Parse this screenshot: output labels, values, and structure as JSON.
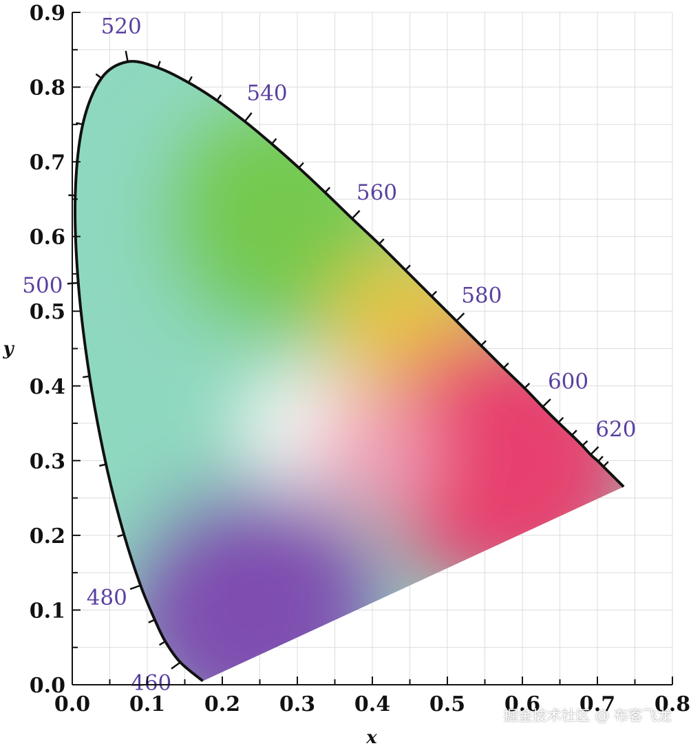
{
  "chart_data": {
    "type": "scatter",
    "title": "",
    "xlabel": "x",
    "ylabel": "y",
    "xlim": [
      0.0,
      0.8
    ],
    "ylim": [
      0.0,
      0.9
    ],
    "x_ticks": [
      "0.0",
      "0.1",
      "0.2",
      "0.3",
      "0.4",
      "0.5",
      "0.6",
      "0.7",
      "0.8"
    ],
    "y_ticks": [
      "0.0",
      "0.1",
      "0.2",
      "0.3",
      "0.4",
      "0.5",
      "0.6",
      "0.7",
      "0.8",
      "0.9"
    ],
    "grid": true,
    "spectral_locus": [
      {
        "nm": 460,
        "x": 0.144,
        "y": 0.03
      },
      {
        "nm": 470,
        "x": 0.124,
        "y": 0.058
      },
      {
        "nm": 475,
        "x": 0.11,
        "y": 0.087
      },
      {
        "nm": 480,
        "x": 0.091,
        "y": 0.133
      },
      {
        "nm": 485,
        "x": 0.069,
        "y": 0.201
      },
      {
        "nm": 490,
        "x": 0.045,
        "y": 0.295
      },
      {
        "nm": 495,
        "x": 0.023,
        "y": 0.413
      },
      {
        "nm": 500,
        "x": 0.008,
        "y": 0.538
      },
      {
        "nm": 505,
        "x": 0.004,
        "y": 0.655
      },
      {
        "nm": 510,
        "x": 0.014,
        "y": 0.75
      },
      {
        "nm": 515,
        "x": 0.039,
        "y": 0.812
      },
      {
        "nm": 520,
        "x": 0.074,
        "y": 0.834
      },
      {
        "nm": 525,
        "x": 0.114,
        "y": 0.826
      },
      {
        "nm": 530,
        "x": 0.155,
        "y": 0.806
      },
      {
        "nm": 535,
        "x": 0.193,
        "y": 0.782
      },
      {
        "nm": 540,
        "x": 0.23,
        "y": 0.754
      },
      {
        "nm": 545,
        "x": 0.266,
        "y": 0.724
      },
      {
        "nm": 550,
        "x": 0.302,
        "y": 0.692
      },
      {
        "nm": 555,
        "x": 0.337,
        "y": 0.659
      },
      {
        "nm": 560,
        "x": 0.373,
        "y": 0.624
      },
      {
        "nm": 565,
        "x": 0.409,
        "y": 0.59
      },
      {
        "nm": 570,
        "x": 0.444,
        "y": 0.555
      },
      {
        "nm": 575,
        "x": 0.479,
        "y": 0.52
      },
      {
        "nm": 580,
        "x": 0.512,
        "y": 0.487
      },
      {
        "nm": 585,
        "x": 0.545,
        "y": 0.454
      },
      {
        "nm": 590,
        "x": 0.575,
        "y": 0.424
      },
      {
        "nm": 595,
        "x": 0.603,
        "y": 0.397
      },
      {
        "nm": 600,
        "x": 0.627,
        "y": 0.372
      },
      {
        "nm": 605,
        "x": 0.648,
        "y": 0.351
      },
      {
        "nm": 610,
        "x": 0.666,
        "y": 0.334
      },
      {
        "nm": 615,
        "x": 0.68,
        "y": 0.32
      },
      {
        "nm": 620,
        "x": 0.691,
        "y": 0.308
      },
      {
        "nm": 625,
        "x": 0.701,
        "y": 0.299
      },
      {
        "nm": 630,
        "x": 0.708,
        "y": 0.292
      },
      {
        "nm": 640,
        "x": 0.719,
        "y": 0.281
      },
      {
        "nm": 650,
        "x": 0.726,
        "y": 0.274
      },
      {
        "nm": 700,
        "x": 0.735,
        "y": 0.265
      }
    ],
    "purple_line_end": {
      "x": 0.174,
      "y": 0.005
    },
    "wavelength_labels": [
      {
        "text": "520",
        "nm": 520
      },
      {
        "text": "540",
        "nm": 540
      },
      {
        "text": "560",
        "nm": 560
      },
      {
        "text": "580",
        "nm": 580
      },
      {
        "text": "600",
        "nm": 600
      },
      {
        "text": "620",
        "nm": 620
      },
      {
        "text": "500",
        "nm": 500
      },
      {
        "text": "480",
        "nm": 480
      },
      {
        "text": "460",
        "nm": 460
      }
    ],
    "color_regions": [
      {
        "color": "#8fd8c0",
        "x": 0.12,
        "y": 0.42
      },
      {
        "color": "#74c94e",
        "x": 0.28,
        "y": 0.62
      },
      {
        "color": "#e6c545",
        "x": 0.46,
        "y": 0.46
      },
      {
        "color": "#e7406e",
        "x": 0.58,
        "y": 0.3
      },
      {
        "color": "#7f4db0",
        "x": 0.24,
        "y": 0.1
      },
      {
        "color": "#ffffff",
        "x": 0.31,
        "y": 0.34
      },
      {
        "color": "#f0a0b8",
        "x": 0.4,
        "y": 0.31
      }
    ]
  },
  "watermark": "掘金技术社区 @ 布客飞龙"
}
